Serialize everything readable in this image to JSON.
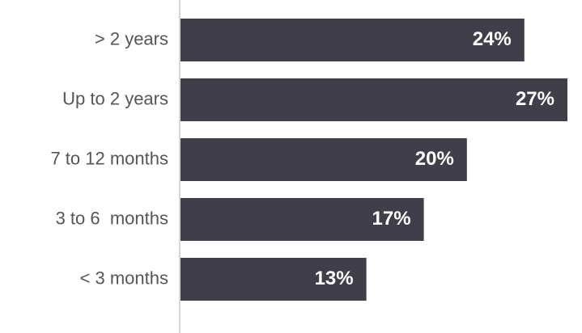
{
  "chart_data": {
    "type": "bar",
    "orientation": "horizontal",
    "categories": [
      "> 2 years",
      "Up to 2 years",
      "7 to 12 months",
      "3 to 6  months",
      "< 3 months"
    ],
    "values": [
      24,
      27,
      20,
      17,
      13
    ],
    "value_labels": [
      "24%",
      "27%",
      "20%",
      "17%",
      "13%"
    ],
    "color": "#403f49"
  }
}
